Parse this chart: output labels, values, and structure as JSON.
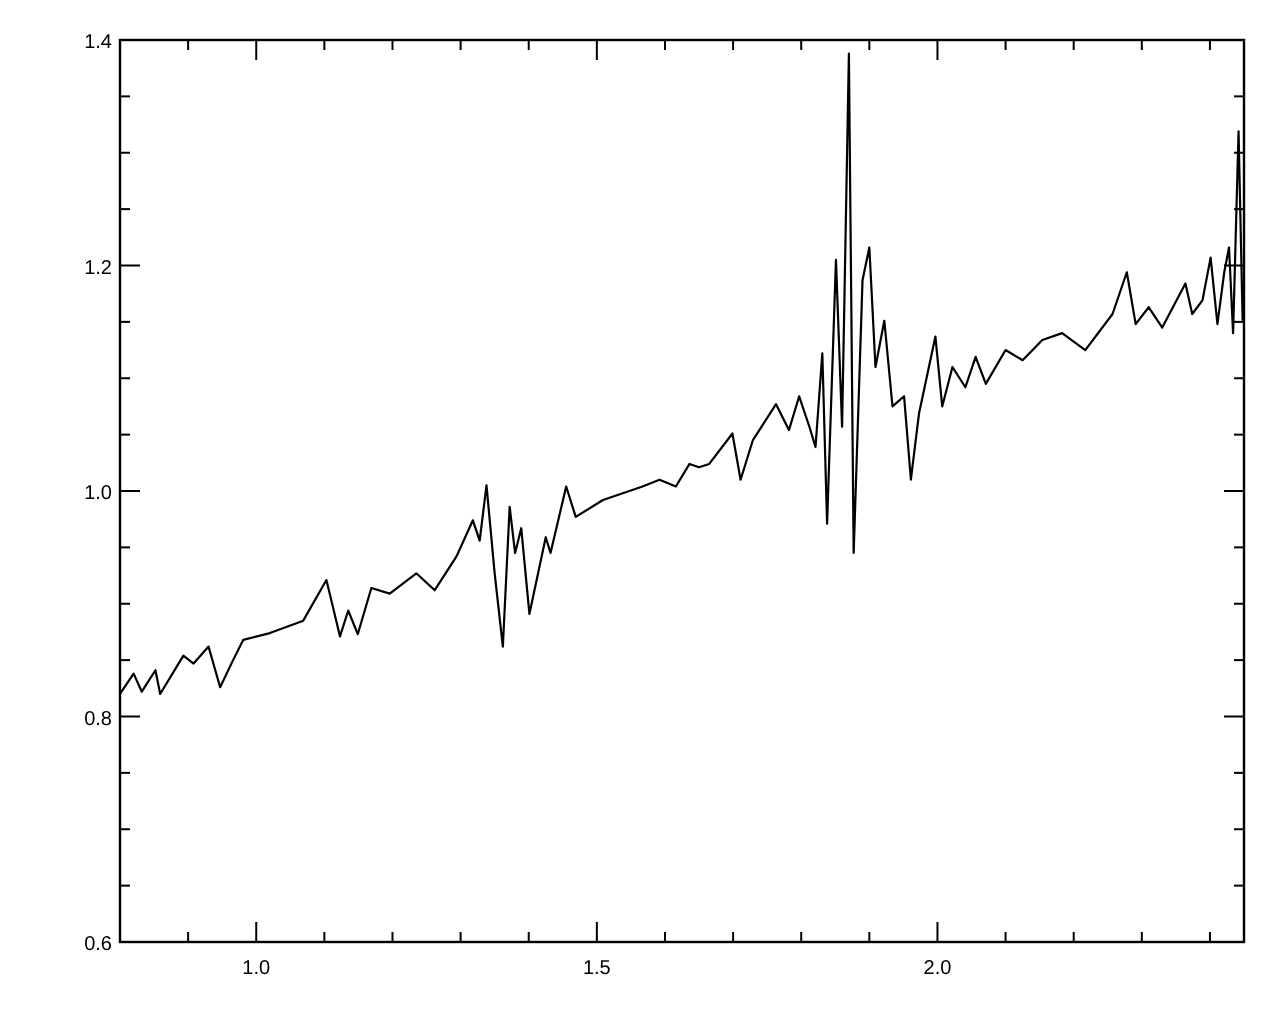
{
  "chart_data": {
    "type": "line",
    "xlim": [
      0.8,
      2.45
    ],
    "ylim": [
      0.6,
      1.4
    ],
    "xticks": [
      {
        "value": 0.9,
        "label": null
      },
      {
        "value": 1.0,
        "label": "1.0"
      },
      {
        "value": 1.1,
        "label": null
      },
      {
        "value": 1.2,
        "label": null
      },
      {
        "value": 1.3,
        "label": null
      },
      {
        "value": 1.4,
        "label": null
      },
      {
        "value": 1.5,
        "label": "1.5"
      },
      {
        "value": 1.6,
        "label": null
      },
      {
        "value": 1.7,
        "label": null
      },
      {
        "value": 1.8,
        "label": null
      },
      {
        "value": 1.9,
        "label": null
      },
      {
        "value": 2.0,
        "label": "2.0"
      },
      {
        "value": 2.1,
        "label": null
      },
      {
        "value": 2.2,
        "label": null
      },
      {
        "value": 2.3,
        "label": null
      },
      {
        "value": 2.4,
        "label": null
      }
    ],
    "yticks": [
      {
        "value": 0.6,
        "label": "0.6"
      },
      {
        "value": 0.65,
        "label": null
      },
      {
        "value": 0.7,
        "label": null
      },
      {
        "value": 0.75,
        "label": null
      },
      {
        "value": 0.8,
        "label": "0.8"
      },
      {
        "value": 0.85,
        "label": null
      },
      {
        "value": 0.9,
        "label": null
      },
      {
        "value": 0.95,
        "label": null
      },
      {
        "value": 1.0,
        "label": "1.0"
      },
      {
        "value": 1.05,
        "label": null
      },
      {
        "value": 1.1,
        "label": null
      },
      {
        "value": 1.15,
        "label": null
      },
      {
        "value": 1.2,
        "label": "1.2"
      },
      {
        "value": 1.25,
        "label": null
      },
      {
        "value": 1.3,
        "label": null
      },
      {
        "value": 1.35,
        "label": null
      },
      {
        "value": 1.4,
        "label": "1.4"
      }
    ],
    "grid": false,
    "marker": "none",
    "line_style": "solid",
    "series": [
      {
        "color": "#000000",
        "x": [
          0.8,
          0.82,
          0.832,
          0.852,
          0.859,
          0.893,
          0.908,
          0.93,
          0.947,
          0.966,
          0.981,
          1.02,
          1.069,
          1.103,
          1.123,
          1.135,
          1.149,
          1.169,
          1.196,
          1.235,
          1.262,
          1.294,
          1.318,
          1.328,
          1.338,
          1.35,
          1.362,
          1.372,
          1.38,
          1.389,
          1.401,
          1.425,
          1.432,
          1.455,
          1.469,
          1.509,
          1.567,
          1.592,
          1.616,
          1.636,
          1.65,
          1.665,
          1.699,
          1.711,
          1.729,
          1.763,
          1.782,
          1.797,
          1.812,
          1.821,
          1.831,
          1.838,
          1.851,
          1.86,
          1.87,
          1.877,
          1.89,
          1.9,
          1.909,
          1.922,
          1.934,
          1.951,
          1.961,
          1.973,
          1.997,
          2.007,
          2.022,
          2.041,
          2.056,
          2.071,
          2.1,
          2.125,
          2.154,
          2.183,
          2.217,
          2.257,
          2.278,
          2.291,
          2.31,
          2.33,
          2.364,
          2.374,
          2.389,
          2.401,
          2.411,
          2.421,
          2.428,
          2.434,
          2.442,
          2.448
        ],
        "values": [
          0.82,
          0.838,
          0.822,
          0.841,
          0.82,
          0.854,
          0.847,
          0.862,
          0.826,
          0.85,
          0.868,
          0.874,
          0.885,
          0.921,
          0.871,
          0.894,
          0.873,
          0.914,
          0.909,
          0.927,
          0.912,
          0.942,
          0.974,
          0.956,
          1.005,
          0.927,
          0.862,
          0.986,
          0.945,
          0.967,
          0.891,
          0.959,
          0.945,
          1.004,
          0.977,
          0.992,
          1.004,
          1.01,
          1.004,
          1.024,
          1.021,
          1.024,
          1.051,
          1.01,
          1.045,
          1.077,
          1.054,
          1.084,
          1.057,
          1.039,
          1.122,
          0.971,
          1.205,
          1.057,
          1.388,
          0.945,
          1.187,
          1.216,
          1.11,
          1.151,
          1.075,
          1.084,
          1.01,
          1.069,
          1.137,
          1.075,
          1.11,
          1.092,
          1.119,
          1.095,
          1.125,
          1.116,
          1.134,
          1.14,
          1.125,
          1.157,
          1.194,
          1.148,
          1.163,
          1.145,
          1.184,
          1.157,
          1.169,
          1.207,
          1.148,
          1.194,
          1.216,
          1.14,
          1.319,
          1.151
        ]
      }
    ]
  }
}
